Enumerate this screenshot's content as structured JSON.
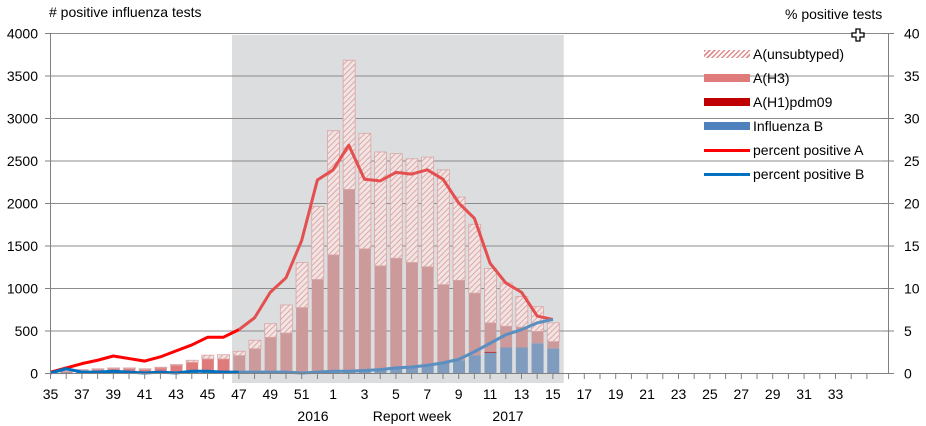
{
  "chart_data": {
    "type": "bar",
    "title": "",
    "y_left_label": "# positive influenza  tests",
    "y_right_label": "% positive tests",
    "xlabel": "Report  week",
    "year_labels": [
      "2016",
      "2017"
    ],
    "ylim_left": [
      0,
      4000
    ],
    "ylim_right": [
      0,
      40
    ],
    "y_left_ticks": [
      0,
      500,
      1000,
      1500,
      2000,
      2500,
      3000,
      3500,
      4000
    ],
    "y_right_ticks": [
      0,
      5,
      10,
      15,
      20,
      25,
      30,
      35,
      40
    ],
    "x_tick_labels": [
      "35",
      "37",
      "39",
      "41",
      "43",
      "45",
      "47",
      "49",
      "51",
      "1",
      "3",
      "5",
      "7",
      "9",
      "11",
      "13",
      "15",
      "17",
      "19",
      "21",
      "23",
      "25",
      "27",
      "29",
      "31",
      "33"
    ],
    "categories": [
      "35",
      "36",
      "37",
      "38",
      "39",
      "40",
      "41",
      "42",
      "43",
      "44",
      "45",
      "46",
      "47",
      "48",
      "49",
      "50",
      "51",
      "52",
      "1",
      "2",
      "3",
      "4",
      "5",
      "6",
      "7",
      "8",
      "9",
      "10",
      "11",
      "12",
      "13",
      "14",
      "15",
      "16",
      "17",
      "18",
      "19",
      "20",
      "21",
      "22",
      "23",
      "24",
      "25",
      "26",
      "27",
      "28",
      "29",
      "30",
      "31",
      "32",
      "33",
      "34"
    ],
    "shaded_region": {
      "from_week": "47",
      "to_week": "15"
    },
    "grid": true,
    "legend_position": "upper right",
    "series": [
      {
        "name": "A(unsubtyped)",
        "kind": "bar-stacked",
        "color": "#e6a8a8",
        "values": [
          0,
          3,
          5,
          5,
          5,
          5,
          5,
          8,
          10,
          25,
          45,
          50,
          50,
          100,
          160,
          330,
          530,
          860,
          1460,
          1520,
          1360,
          1340,
          1230,
          1220,
          1290,
          1350,
          980,
          810,
          640,
          510,
          360,
          290,
          220,
          0,
          0,
          0,
          0,
          0,
          0,
          0,
          0,
          0,
          0,
          0,
          0,
          0,
          0,
          0,
          0,
          0,
          0,
          0
        ]
      },
      {
        "name": "A(H3)",
        "kind": "bar-stacked",
        "color": "#e07b7b",
        "values": [
          0,
          15,
          30,
          40,
          50,
          50,
          40,
          55,
          85,
          120,
          160,
          160,
          200,
          280,
          410,
          460,
          760,
          1080,
          1360,
          2130,
          1430,
          1230,
          1290,
          1240,
          1150,
          910,
          940,
          730,
          340,
          250,
          240,
          140,
          80,
          0,
          0,
          0,
          0,
          0,
          0,
          0,
          0,
          0,
          0,
          0,
          0,
          0,
          0,
          0,
          0,
          0,
          0,
          0
        ]
      },
      {
        "name": "A(H1)pdm09",
        "kind": "bar-stacked",
        "color": "#c00000",
        "values": [
          0,
          0,
          0,
          0,
          0,
          0,
          0,
          0,
          0,
          0,
          0,
          0,
          0,
          0,
          0,
          0,
          0,
          10,
          0,
          0,
          0,
          0,
          0,
          0,
          0,
          0,
          0,
          0,
          10,
          0,
          0,
          0,
          0,
          0,
          0,
          0,
          0,
          0,
          0,
          0,
          0,
          0,
          0,
          0,
          0,
          0,
          0,
          0,
          0,
          0,
          0,
          0
        ]
      },
      {
        "name": "Influenza B",
        "kind": "bar-stacked",
        "color": "#4f81bd",
        "values": [
          0,
          5,
          5,
          5,
          5,
          5,
          5,
          5,
          5,
          5,
          5,
          5,
          5,
          5,
          10,
          10,
          10,
          10,
          30,
          30,
          30,
          30,
          60,
          60,
          100,
          130,
          150,
          210,
          240,
          300,
          300,
          350,
          290,
          0,
          0,
          0,
          0,
          0,
          0,
          0,
          0,
          0,
          0,
          0,
          0,
          0,
          0,
          0,
          0,
          0,
          0,
          0
        ]
      },
      {
        "name": "percent positive A",
        "kind": "line",
        "axis": "right",
        "color": "#ff0000",
        "values": [
          0.1,
          0.6,
          1.1,
          1.5,
          2.0,
          1.7,
          1.4,
          1.9,
          2.6,
          3.3,
          4.2,
          4.2,
          5.1,
          6.5,
          9.5,
          11.2,
          15.6,
          22.7,
          23.9,
          26.8,
          22.8,
          22.6,
          23.6,
          23.4,
          23.9,
          22.8,
          20.0,
          18.2,
          12.9,
          10.6,
          9.5,
          6.7,
          6.3
        ]
      },
      {
        "name": "percent positive B",
        "kind": "line",
        "axis": "right",
        "color": "#0070c0",
        "values": [
          0.0,
          0.5,
          0.1,
          0.1,
          0.2,
          0.1,
          0.0,
          0.1,
          0.0,
          0.2,
          0.2,
          0.1,
          0.1,
          0.1,
          0.1,
          0.1,
          0.0,
          0.1,
          0.2,
          0.2,
          0.3,
          0.4,
          0.6,
          0.7,
          0.9,
          1.2,
          1.6,
          2.5,
          3.5,
          4.5,
          5.1,
          5.9,
          6.3
        ]
      }
    ]
  },
  "legend": {
    "items": [
      {
        "label": "A(unsubtyped)",
        "kind": "hatch",
        "color": "#e6a8a8"
      },
      {
        "label": "A(H3)",
        "kind": "fill",
        "color": "#e07b7b"
      },
      {
        "label": "A(H1)pdm09",
        "kind": "fill",
        "color": "#c00000"
      },
      {
        "label": "Influenza B",
        "kind": "fill",
        "color": "#4f81bd"
      },
      {
        "label": "percent positive A",
        "kind": "line",
        "color": "#ff0000"
      },
      {
        "label": "percent positive B",
        "kind": "line",
        "color": "#0070c0"
      }
    ]
  },
  "colors": {
    "shade": "#dcdddf",
    "grid": "#8c8c8c",
    "axis": "#808080"
  }
}
